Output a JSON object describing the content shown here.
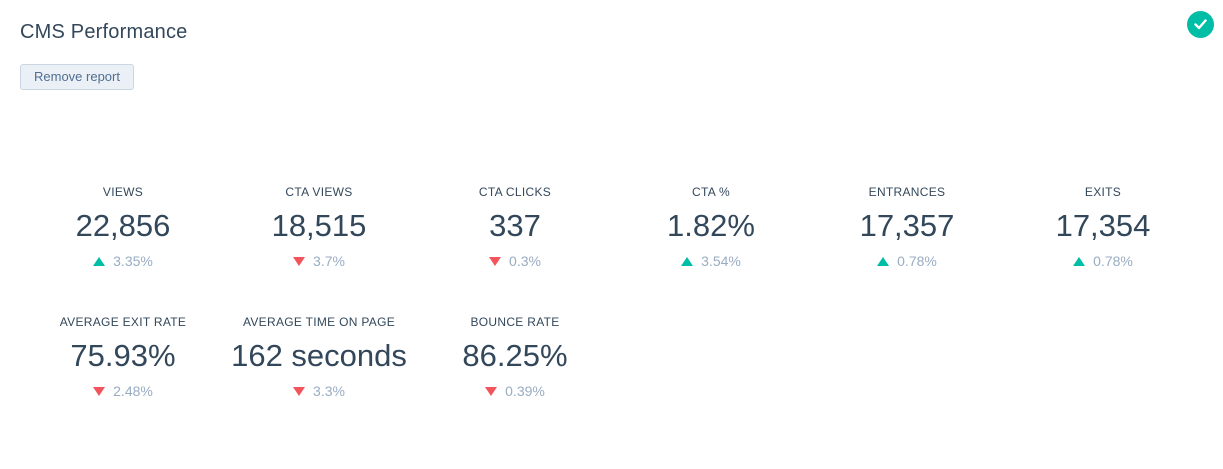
{
  "header": {
    "title": "CMS Performance",
    "remove_button_label": "Remove report",
    "status_icon": "check-circle-icon"
  },
  "colors": {
    "text_dark": "#33475b",
    "text_muted": "#99acc2",
    "teal": "#00bda5",
    "red": "#f2545b",
    "button_bg": "#eaf0f6",
    "button_border": "#cbd6e2",
    "button_text": "#506e91"
  },
  "metrics": {
    "rows": [
      [
        {
          "label": "VIEWS",
          "value": "22,856",
          "delta": "3.35%",
          "direction": "up"
        },
        {
          "label": "CTA VIEWS",
          "value": "18,515",
          "delta": "3.7%",
          "direction": "down"
        },
        {
          "label": "CTA CLICKS",
          "value": "337",
          "delta": "0.3%",
          "direction": "down"
        },
        {
          "label": "CTA %",
          "value": "1.82%",
          "delta": "3.54%",
          "direction": "up"
        },
        {
          "label": "ENTRANCES",
          "value": "17,357",
          "delta": "0.78%",
          "direction": "up"
        },
        {
          "label": "EXITS",
          "value": "17,354",
          "delta": "0.78%",
          "direction": "up"
        }
      ],
      [
        {
          "label": "AVERAGE EXIT RATE",
          "value": "75.93%",
          "delta": "2.48%",
          "direction": "down"
        },
        {
          "label": "AVERAGE TIME ON PAGE",
          "value": "162 seconds",
          "delta": "3.3%",
          "direction": "down"
        },
        {
          "label": "BOUNCE RATE",
          "value": "86.25%",
          "delta": "0.39%",
          "direction": "down"
        }
      ]
    ]
  }
}
